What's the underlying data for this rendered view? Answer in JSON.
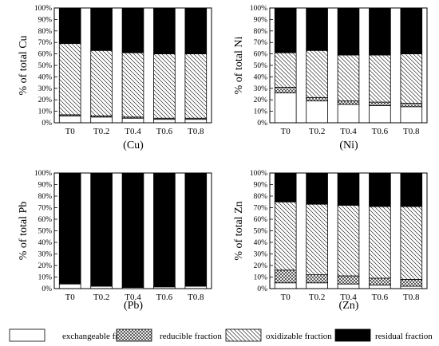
{
  "chart_data": [
    {
      "type": "bar",
      "stacked": true,
      "title": "(Cu)",
      "ylabel": "% of total Cu",
      "ylim": [
        0,
        100
      ],
      "yticks": [
        "0%",
        "10%",
        "20%",
        "30%",
        "40%",
        "50%",
        "60%",
        "70%",
        "80%",
        "90%",
        "100%"
      ],
      "categories": [
        "T0",
        "T0.2",
        "T0.4",
        "T0.6",
        "T0.8"
      ],
      "series": [
        {
          "name": "exchangeable fraction",
          "values": [
            6,
            5,
            4,
            3,
            3
          ]
        },
        {
          "name": "reducible fraction",
          "values": [
            1,
            1,
            1,
            1,
            1
          ]
        },
        {
          "name": "oxidizable fraction",
          "values": [
            62,
            57,
            56,
            56,
            56
          ]
        },
        {
          "name": "residual fraction",
          "values": [
            31,
            37,
            39,
            40,
            40
          ]
        }
      ]
    },
    {
      "type": "bar",
      "stacked": true,
      "title": "(Ni)",
      "ylabel": "% of total Ni",
      "ylim": [
        0,
        100
      ],
      "yticks": [
        "0%",
        "10%",
        "20%",
        "30%",
        "40%",
        "50%",
        "60%",
        "70%",
        "80%",
        "90%",
        "100%"
      ],
      "categories": [
        "T0",
        "T0.2",
        "T0.4",
        "T0.6",
        "T0.8"
      ],
      "series": [
        {
          "name": "exchangeable fraction",
          "values": [
            26,
            19,
            16,
            15,
            14
          ]
        },
        {
          "name": "reducible fraction",
          "values": [
            5,
            3,
            3,
            3,
            3
          ]
        },
        {
          "name": "oxidizable fraction",
          "values": [
            30,
            41,
            40,
            41,
            43
          ]
        },
        {
          "name": "residual fraction",
          "values": [
            39,
            37,
            41,
            41,
            40
          ]
        }
      ]
    },
    {
      "type": "bar",
      "stacked": true,
      "title": "(Pb)",
      "ylabel": "% of total Pb",
      "ylim": [
        0,
        100
      ],
      "yticks": [
        "0%",
        "10%",
        "20%",
        "30%",
        "40%",
        "50%",
        "60%",
        "70%",
        "80%",
        "90%",
        "100%"
      ],
      "categories": [
        "T0",
        "T0.2",
        "T0.4",
        "T0.6",
        "T0.8"
      ],
      "series": [
        {
          "name": "exchangeable fraction",
          "values": [
            4,
            2,
            1,
            1.5,
            2
          ]
        },
        {
          "name": "reducible fraction",
          "values": [
            0,
            0,
            0,
            0,
            0
          ]
        },
        {
          "name": "oxidizable fraction",
          "values": [
            0,
            0,
            0,
            0,
            0
          ]
        },
        {
          "name": "residual fraction",
          "values": [
            96,
            98,
            99,
            98.5,
            98
          ]
        }
      ]
    },
    {
      "type": "bar",
      "stacked": true,
      "title": "(Zn)",
      "ylabel": "% of total Zn",
      "ylim": [
        0,
        100
      ],
      "yticks": [
        "0%",
        "10%",
        "20%",
        "30%",
        "40%",
        "50%",
        "60%",
        "70%",
        "80%",
        "90%",
        "100%"
      ],
      "categories": [
        "T0",
        "T0.2",
        "T0.4",
        "T0.6",
        "T0.8"
      ],
      "series": [
        {
          "name": "exchangeable fraction",
          "values": [
            5,
            5,
            4,
            3,
            2
          ]
        },
        {
          "name": "reducible fraction",
          "values": [
            11,
            7,
            7,
            6,
            6
          ]
        },
        {
          "name": "oxidizable fraction",
          "values": [
            59,
            61,
            61,
            62,
            63
          ]
        },
        {
          "name": "residual fraction",
          "values": [
            25,
            27,
            28,
            29,
            29
          ]
        }
      ]
    }
  ],
  "legend": {
    "placement": "bottom",
    "items": [
      {
        "label": "exchangeable fraction",
        "pattern": "white"
      },
      {
        "label": "reducible fraction",
        "pattern": "crosshatch"
      },
      {
        "label": "oxidizable fraction",
        "pattern": "diagonal"
      },
      {
        "label": "residual fraction",
        "pattern": "black"
      }
    ]
  }
}
